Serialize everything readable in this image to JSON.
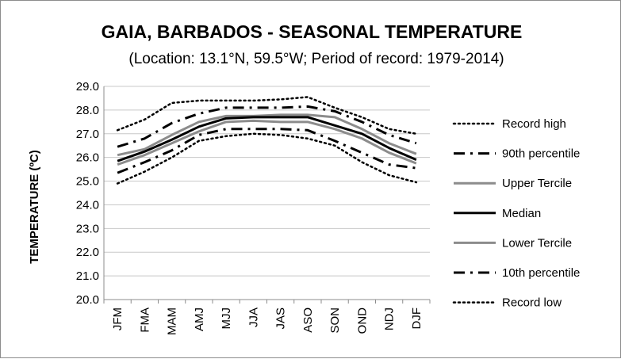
{
  "chart_data": {
    "type": "line",
    "title": "GAIA, BARBADOS - SEASONAL TEMPERATURE",
    "subtitle": "(Location: 13.1°N, 59.5°W; Period of record: 1979-2014)",
    "xlabel": "",
    "ylabel": "TEMPERATURE (ºC)",
    "ylim": [
      20.0,
      29.0
    ],
    "yticks": [
      "20.0",
      "21.0",
      "22.0",
      "23.0",
      "24.0",
      "25.0",
      "26.0",
      "27.0",
      "28.0",
      "29.0"
    ],
    "grid": true,
    "legend_position": "right",
    "categories": [
      "JFM",
      "FMA",
      "MAM",
      "AMJ",
      "MJJ",
      "JJA",
      "JAS",
      "ASO",
      "SON",
      "OND",
      "NDJ",
      "DJF"
    ],
    "series": [
      {
        "name": "Record high",
        "color": "#000000",
        "style": "dotted",
        "values": [
          27.15,
          27.6,
          28.3,
          28.4,
          28.4,
          28.4,
          28.45,
          28.55,
          28.1,
          27.7,
          27.2,
          27.0
        ]
      },
      {
        "name": "90th percentile",
        "color": "#000000",
        "style": "dashdot",
        "values": [
          26.45,
          26.8,
          27.45,
          27.85,
          28.1,
          28.1,
          28.1,
          28.15,
          27.95,
          27.5,
          26.95,
          26.6
        ]
      },
      {
        "name": "Upper Tercile",
        "color": "#8c8c8c",
        "style": "solid",
        "values": [
          26.1,
          26.35,
          26.95,
          27.5,
          27.75,
          27.75,
          27.8,
          27.8,
          27.7,
          27.2,
          26.6,
          26.15
        ]
      },
      {
        "name": "Median",
        "color": "#000000",
        "style": "solid",
        "values": [
          25.85,
          26.25,
          26.75,
          27.3,
          27.65,
          27.7,
          27.7,
          27.7,
          27.35,
          27.0,
          26.4,
          25.9
        ]
      },
      {
        "name": "Lower Tercile",
        "color": "#8c8c8c",
        "style": "solid",
        "values": [
          25.7,
          26.1,
          26.6,
          27.1,
          27.5,
          27.55,
          27.5,
          27.5,
          27.2,
          26.8,
          26.2,
          25.75
        ]
      },
      {
        "name": "10th percentile",
        "color": "#000000",
        "style": "dashdot",
        "values": [
          25.35,
          25.8,
          26.3,
          26.95,
          27.2,
          27.2,
          27.2,
          27.15,
          26.7,
          26.2,
          25.7,
          25.55
        ]
      },
      {
        "name": "Record low",
        "color": "#000000",
        "style": "dotted",
        "values": [
          24.9,
          25.4,
          26.0,
          26.7,
          26.9,
          27.0,
          26.95,
          26.8,
          26.5,
          25.8,
          25.25,
          24.95
        ]
      }
    ]
  }
}
